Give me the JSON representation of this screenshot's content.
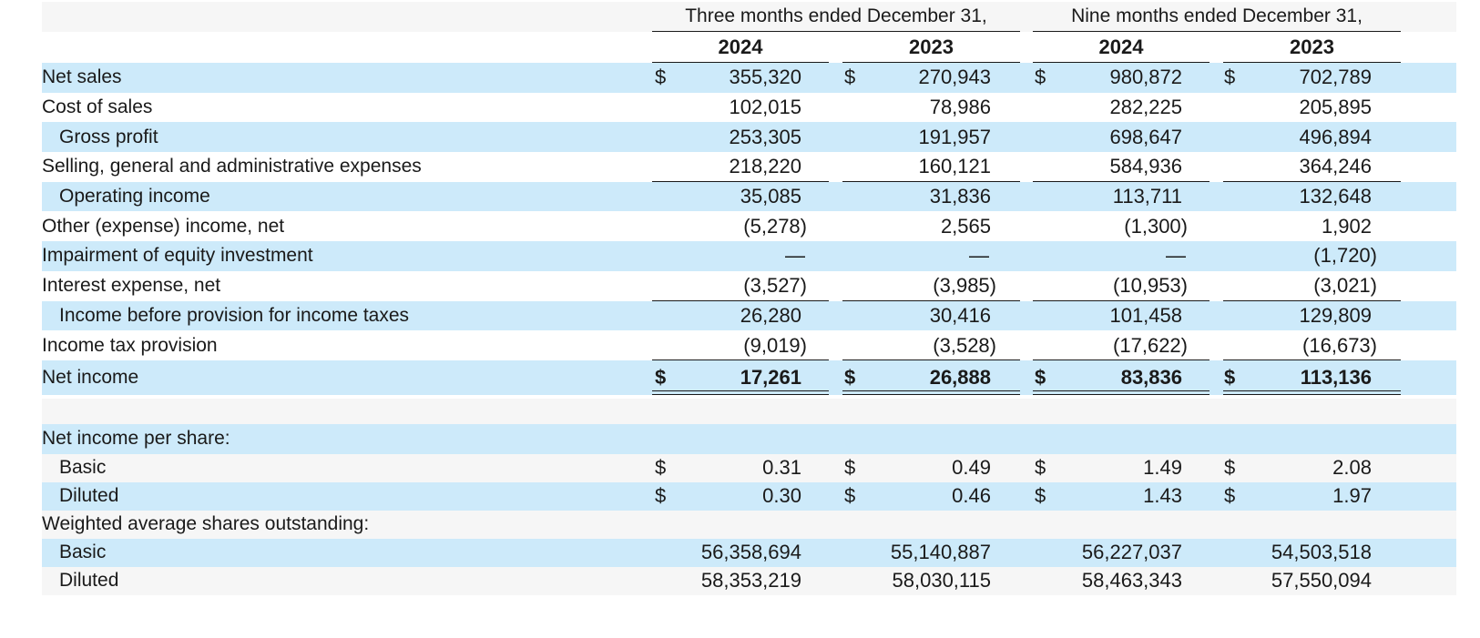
{
  "header": {
    "three_months": "Three months ended December 31,",
    "nine_months": "Nine months ended December 31,",
    "years": [
      "2024",
      "2023",
      "2024",
      "2023"
    ]
  },
  "currency_symbol": "$",
  "rows": [
    {
      "label": "Net sales",
      "values": [
        "355,320",
        "270,943",
        "980,872",
        "702,789"
      ]
    },
    {
      "label": "Cost of sales",
      "values": [
        "102,015",
        "78,986",
        "282,225",
        "205,895"
      ]
    },
    {
      "label": "Gross profit",
      "values": [
        "253,305",
        "191,957",
        "698,647",
        "496,894"
      ]
    },
    {
      "label": "Selling, general and administrative expenses",
      "values": [
        "218,220",
        "160,121",
        "584,936",
        "364,246"
      ]
    },
    {
      "label": "Operating income",
      "values": [
        "35,085",
        "31,836",
        "113,711",
        "132,648"
      ]
    },
    {
      "label": "Other (expense) income, net",
      "values": [
        "(5,278)",
        "2,565",
        "(1,300)",
        "1,902"
      ]
    },
    {
      "label": "Impairment of equity investment",
      "values": [
        "—",
        "—",
        "—",
        "(1,720)"
      ]
    },
    {
      "label": "Interest expense, net",
      "values": [
        "(3,527)",
        "(3,985)",
        "(10,953)",
        "(3,021)"
      ]
    },
    {
      "label": "Income before provision for income taxes",
      "values": [
        "26,280",
        "30,416",
        "101,458",
        "129,809"
      ]
    },
    {
      "label": "Income tax provision",
      "values": [
        "(9,019)",
        "(3,528)",
        "(17,622)",
        "(16,673)"
      ]
    },
    {
      "label": "Net income",
      "values": [
        "17,261",
        "26,888",
        "83,836",
        "113,136"
      ]
    }
  ],
  "per_share": {
    "heading": "Net income per share:",
    "basic": {
      "label": "Basic",
      "values": [
        "0.31",
        "0.49",
        "1.49",
        "2.08"
      ]
    },
    "diluted": {
      "label": "Diluted",
      "values": [
        "0.30",
        "0.46",
        "1.43",
        "1.97"
      ]
    }
  },
  "shares": {
    "heading": "Weighted average shares outstanding:",
    "basic": {
      "label": "Basic",
      "values": [
        "56,358,694",
        "55,140,887",
        "56,227,037",
        "54,503,518"
      ]
    },
    "diluted": {
      "label": "Diluted",
      "values": [
        "58,353,219",
        "58,030,115",
        "58,463,343",
        "57,550,094"
      ]
    }
  }
}
